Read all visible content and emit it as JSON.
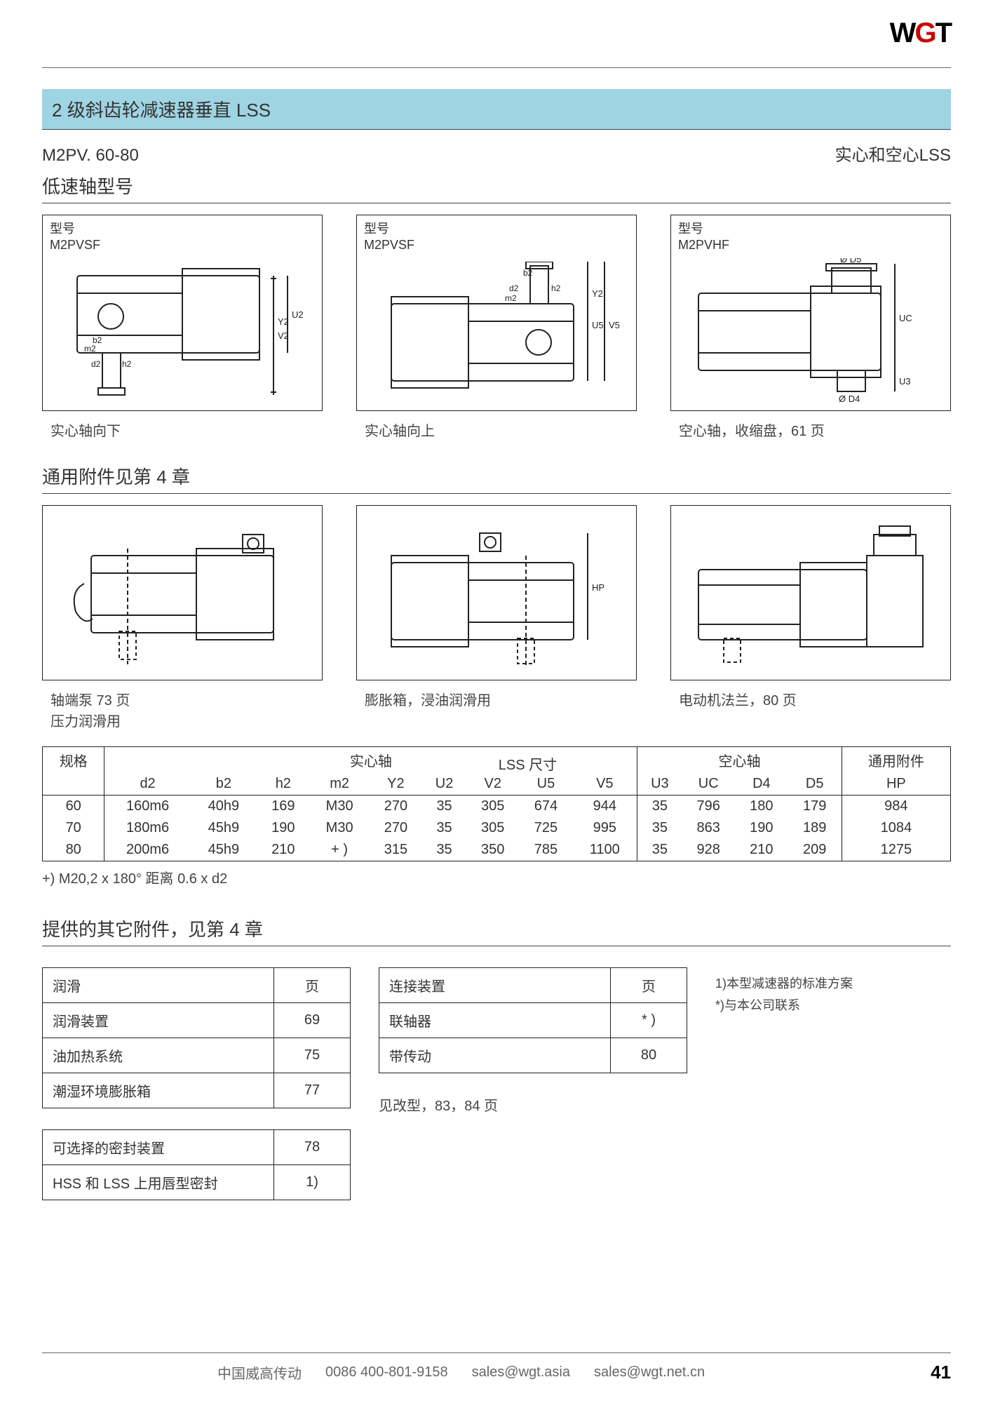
{
  "logo": {
    "part1": "W",
    "part2": "G",
    "part3": "T"
  },
  "title_bar": "2 级斜齿轮减速器垂直 LSS",
  "model_row": {
    "left": "M2PV. 60-80",
    "right": "实心和空心LSS"
  },
  "section_low_speed": "低速轴型号",
  "diagrams_row1": [
    {
      "top_label1": "型号",
      "top_label2": "M2PVSF",
      "caption": "实心轴向下"
    },
    {
      "top_label1": "型号",
      "top_label2": "M2PVSF",
      "caption": "实心轴向上"
    },
    {
      "top_label1": "型号",
      "top_label2": "M2PVHF",
      "caption": "空心轴，收缩盘，61 页"
    }
  ],
  "section_accessories": "通用附件见第 4 章",
  "diagrams_row2": [
    {
      "caption_l1": "轴端泵 73 页",
      "caption_l2": "压力润滑用"
    },
    {
      "caption_l1": "膨胀箱，浸油润滑用",
      "caption_l2": ""
    },
    {
      "caption_l1": "电动机法兰，80 页",
      "caption_l2": ""
    }
  ],
  "dim_table": {
    "top_headers": {
      "spec": "规格",
      "solid": "实心轴",
      "lss": "LSS 尺寸",
      "hollow": "空心轴",
      "acc": "通用附件"
    },
    "cols": [
      "d2",
      "b2",
      "h2",
      "m2",
      "Y2",
      "U2",
      "V2",
      "U5",
      "V5",
      "U3",
      "UC",
      "D4",
      "D5",
      "HP"
    ],
    "rows": [
      {
        "spec": "60",
        "cells": [
          "160m6",
          "40h9",
          "169",
          "M30",
          "270",
          "35",
          "305",
          "674",
          "944",
          "35",
          "796",
          "180",
          "179",
          "984"
        ]
      },
      {
        "spec": "70",
        "cells": [
          "180m6",
          "45h9",
          "190",
          "M30",
          "270",
          "35",
          "305",
          "725",
          "995",
          "35",
          "863",
          "190",
          "189",
          "1084"
        ]
      },
      {
        "spec": "80",
        "cells": [
          "200m6",
          "45h9",
          "210",
          "+ )",
          "315",
          "35",
          "350",
          "785",
          "1100",
          "35",
          "928",
          "210",
          "209",
          "1275"
        ]
      }
    ],
    "note": "+) M20,2 x 180° 距离 0.6 x d2"
  },
  "section_other_acc": "提供的其它附件，见第 4 章",
  "lubrication_table": {
    "header": {
      "name": "润滑",
      "page": "页"
    },
    "rows": [
      {
        "name": "润滑装置",
        "page": "69"
      },
      {
        "name": "油加热系统",
        "page": "75"
      },
      {
        "name": "潮湿环境膨胀箱",
        "page": "77"
      }
    ]
  },
  "connection_table": {
    "header": {
      "name": "连接装置",
      "page": "页"
    },
    "rows": [
      {
        "name": "联轴器",
        "page": "* )"
      },
      {
        "name": "带传动",
        "page": "80"
      }
    ],
    "foot_note": "见改型，83，84 页"
  },
  "side_notes": {
    "l1": "1)本型减速器的标准方案",
    "l2": "*)与本公司联系"
  },
  "seal_table": {
    "header": {
      "name": "可选择的密封装置",
      "page": "78"
    },
    "rows": [
      {
        "name": "HSS 和 LSS 上用唇型密封",
        "page": "1)"
      }
    ]
  },
  "footer": {
    "company": "中国威高传动",
    "phone": "0086   400-801-9158",
    "email1": "sales@wgt.asia",
    "email2": "sales@wgt.net.cn",
    "page_num": "41"
  }
}
